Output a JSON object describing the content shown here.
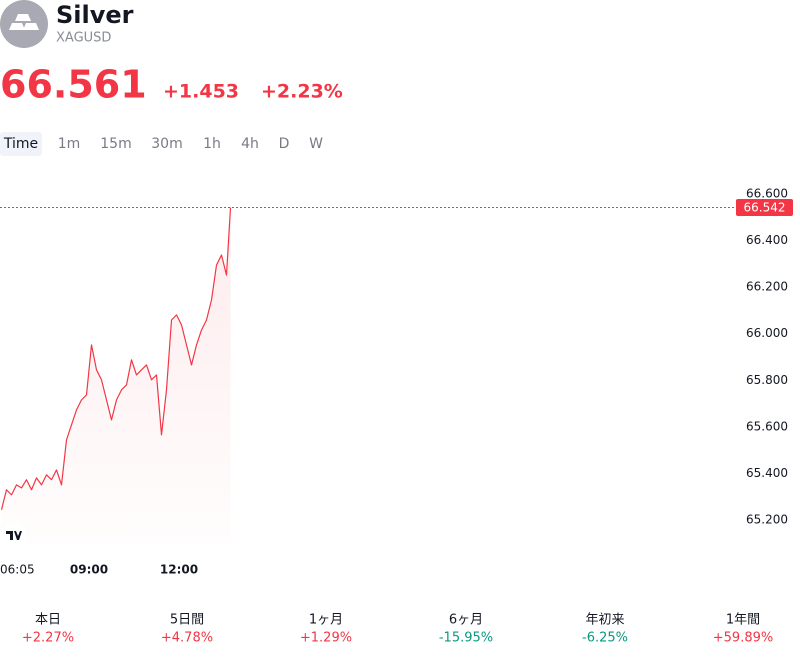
{
  "header": {
    "name": "Silver",
    "symbol": "XAGUSD",
    "price": "66.561",
    "change": "+1.453",
    "change_percent": "+2.23%"
  },
  "tabs": [
    "Time",
    "1m",
    "15m",
    "30m",
    "1h",
    "4h",
    "D",
    "W"
  ],
  "chart_data": {
    "type": "line",
    "color": "#f23645",
    "x": [
      "06:05",
      "06:15",
      "06:25",
      "06:35",
      "06:45",
      "06:55",
      "07:05",
      "07:15",
      "07:25",
      "07:35",
      "07:45",
      "07:55",
      "08:05",
      "08:15",
      "08:25",
      "08:35",
      "08:45",
      "08:55",
      "09:05",
      "09:15",
      "09:25",
      "09:35",
      "09:45",
      "09:55",
      "10:05",
      "10:15",
      "10:25",
      "10:35",
      "10:45",
      "10:55",
      "11:05",
      "11:15",
      "11:25",
      "11:35",
      "11:45",
      "11:55",
      "12:05",
      "12:15",
      "12:25",
      "12:35",
      "12:45",
      "12:55",
      "13:05",
      "13:15",
      "13:25",
      "13:35",
      "13:43"
    ],
    "values": [
      65.244,
      65.33,
      65.308,
      65.351,
      65.338,
      65.373,
      65.33,
      65.381,
      65.351,
      65.394,
      65.373,
      65.415,
      65.351,
      65.544,
      65.609,
      65.673,
      65.716,
      65.737,
      65.952,
      65.845,
      65.802,
      65.716,
      65.63,
      65.716,
      65.759,
      65.78,
      65.888,
      65.823,
      65.845,
      65.866,
      65.802,
      65.823,
      65.566,
      65.759,
      66.059,
      66.081,
      66.038,
      65.952,
      65.866,
      65.952,
      66.016,
      66.059,
      66.145,
      66.295,
      66.338,
      66.252,
      66.542
    ],
    "ylim": [
      65.1,
      66.68
    ],
    "yticks": [
      {
        "value": 65.2,
        "label": "65.200"
      },
      {
        "value": 65.4,
        "label": "65.400"
      },
      {
        "value": 65.6,
        "label": "65.600"
      },
      {
        "value": 65.8,
        "label": "65.800"
      },
      {
        "value": 66.0,
        "label": "66.000"
      },
      {
        "value": 66.2,
        "label": "66.200"
      },
      {
        "value": 66.4,
        "label": "66.400"
      },
      {
        "value": 66.6,
        "label": "66.600"
      }
    ],
    "xticks": [
      "06:05",
      "09:00",
      "12:00"
    ],
    "last_price": 66.542
  },
  "performance": [
    {
      "label": "本日",
      "value": "+2.27%",
      "color": "#f23645"
    },
    {
      "label": "5日間",
      "value": "+4.78%",
      "color": "#f23645"
    },
    {
      "label": "1ヶ月",
      "value": "+1.29%",
      "color": "#f23645"
    },
    {
      "label": "6ヶ月",
      "value": "-15.95%",
      "color": "#089981"
    },
    {
      "label": "年初来",
      "value": "-6.25%",
      "color": "#089981"
    },
    {
      "label": "1年間",
      "value": "+59.89%",
      "color": "#f23645"
    }
  ]
}
